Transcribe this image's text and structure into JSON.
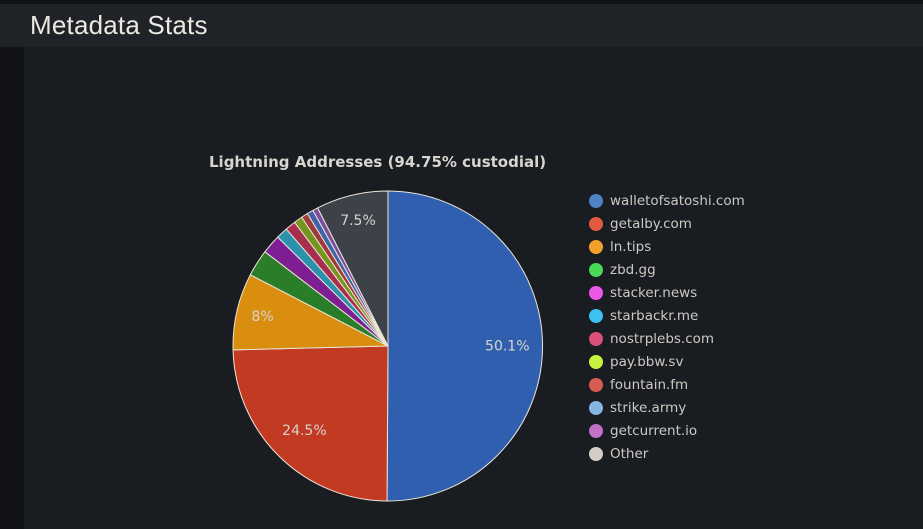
{
  "header": {
    "title": "Metadata Stats"
  },
  "chart_data": {
    "type": "pie",
    "title": "Lightning Addresses (94.75% custodial)",
    "legend_position": "right",
    "start_angle": "12 o'clock",
    "direction": "clockwise",
    "stroke_color": "#ece4d8",
    "label_color": "#d8d4ce",
    "slices": [
      {
        "name": "walletofsatoshi.com",
        "value": 50.1,
        "label": "50.1%",
        "color": "#2f5fae",
        "legend_color": "#4d82c4"
      },
      {
        "name": "getalby.com",
        "value": 24.5,
        "label": "24.5%",
        "color": "#c23a22",
        "legend_color": "#e25b3d"
      },
      {
        "name": "ln.tips",
        "value": 8.0,
        "label": "8%",
        "color": "#d98e10",
        "legend_color": "#f2a22b"
      },
      {
        "name": "zbd.gg",
        "value": 2.8,
        "label": "",
        "color": "#2a7e2a",
        "legend_color": "#47d957"
      },
      {
        "name": "stacker.news",
        "value": 2.0,
        "label": "",
        "color": "#7d1f93",
        "legend_color": "#ea57e5"
      },
      {
        "name": "starbackr.me",
        "value": 1.2,
        "label": "",
        "color": "#2a92ad",
        "legend_color": "#3ec3f0"
      },
      {
        "name": "nostrplebs.com",
        "value": 1.1,
        "label": "",
        "color": "#a82e4e",
        "legend_color": "#da5078"
      },
      {
        "name": "pay.bbw.sv",
        "value": 0.9,
        "label": "",
        "color": "#74951f",
        "legend_color": "#c6f23e"
      },
      {
        "name": "fountain.fm",
        "value": 0.7,
        "label": "",
        "color": "#9e3a3a",
        "legend_color": "#d95c52"
      },
      {
        "name": "strike.army",
        "value": 0.65,
        "label": "",
        "color": "#3f63a8",
        "legend_color": "#85b6e3"
      },
      {
        "name": "getcurrent.io",
        "value": 0.55,
        "label": "",
        "color": "#7b4f9e",
        "legend_color": "#bf72c6"
      },
      {
        "name": "Other",
        "value": 7.5,
        "label": "7.5%",
        "color": "#3d4249",
        "legend_color": "#d2cec7"
      }
    ]
  },
  "colors": {
    "page_background": "#121316",
    "header_background": "#1f2227",
    "panel_background": "#191c20",
    "header_text": "#ece8e2",
    "chart_title_text": "#d8d4ce",
    "legend_text": "#cdc9c3"
  }
}
